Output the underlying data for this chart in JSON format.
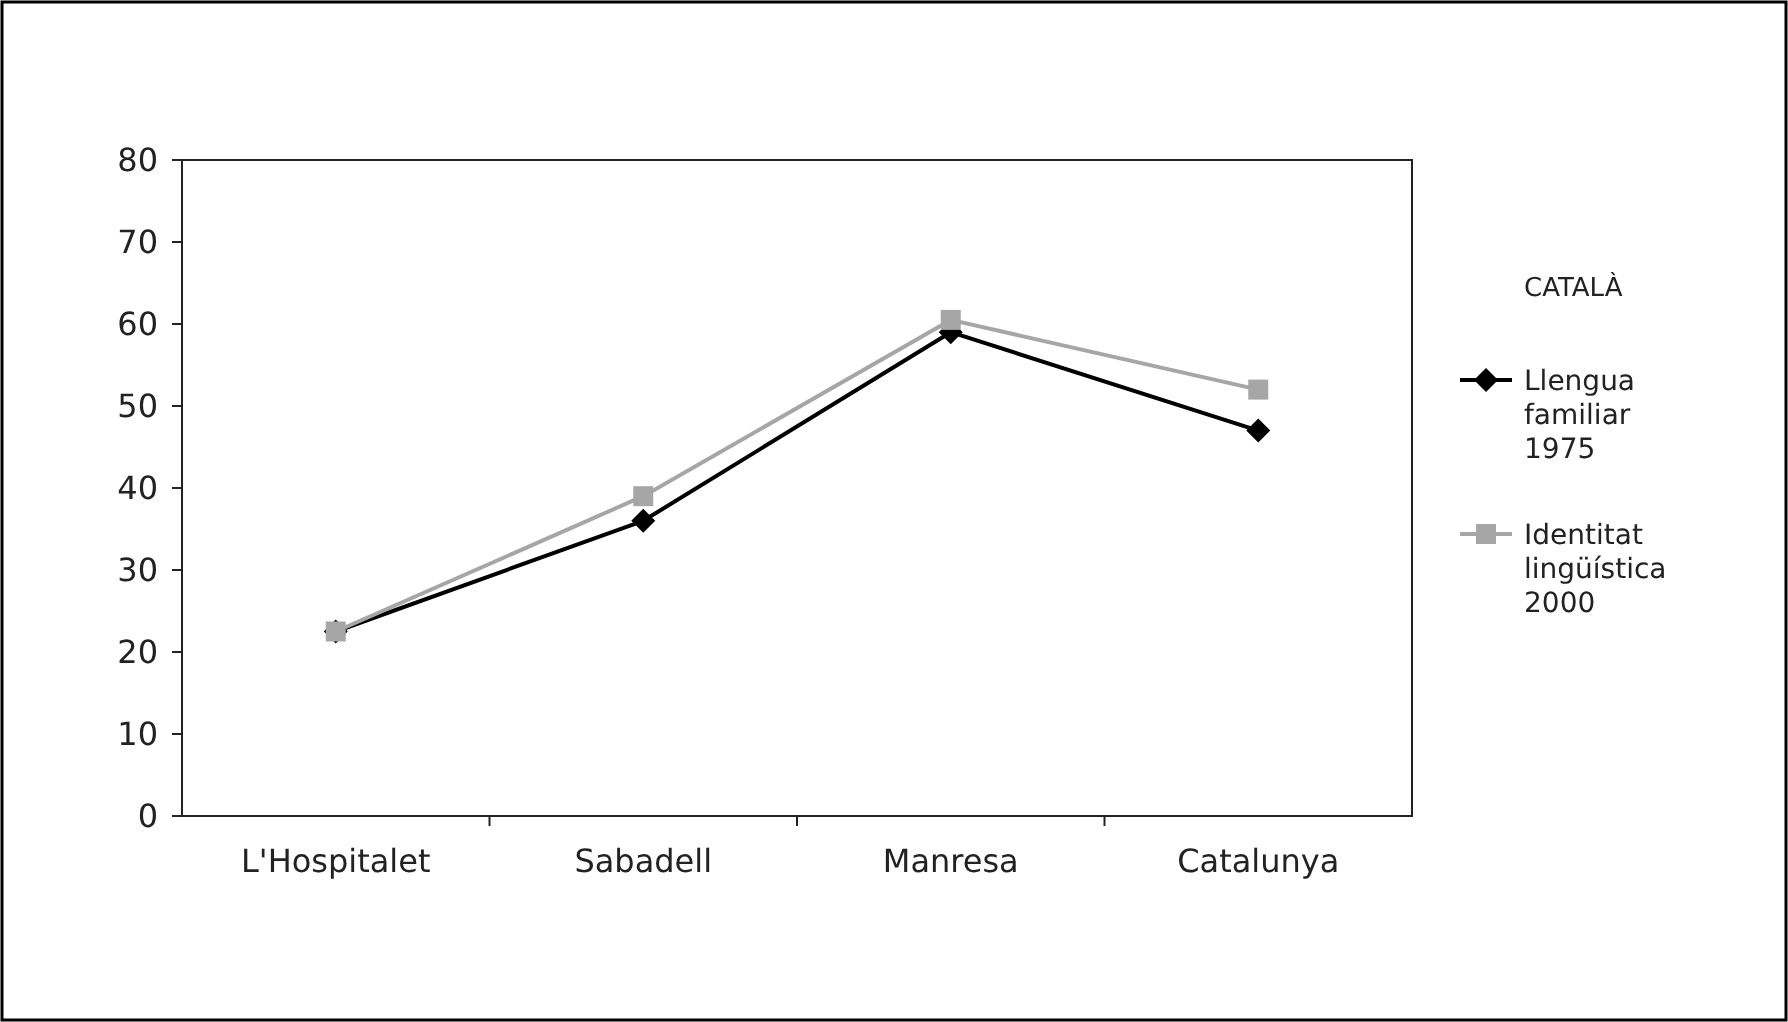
{
  "chart_data": {
    "type": "line",
    "categories": [
      "L'Hospitalet",
      "Sabadell",
      "Manresa",
      "Catalunya"
    ],
    "series": [
      {
        "name": "Llengua familiar 1975",
        "color": "#000000",
        "marker": "diamond",
        "values": [
          22.5,
          36,
          59,
          47
        ]
      },
      {
        "name": "Identitat lingüística 2000",
        "color": "#a6a6a6",
        "marker": "square",
        "values": [
          22.5,
          39,
          60.5,
          52
        ]
      }
    ],
    "ylim": [
      0,
      80
    ],
    "yticks": [
      0,
      10,
      20,
      30,
      40,
      50,
      60,
      70,
      80
    ],
    "legend": "right",
    "legend_title": "CATALÀ",
    "grid": false,
    "line_style": "solid"
  }
}
